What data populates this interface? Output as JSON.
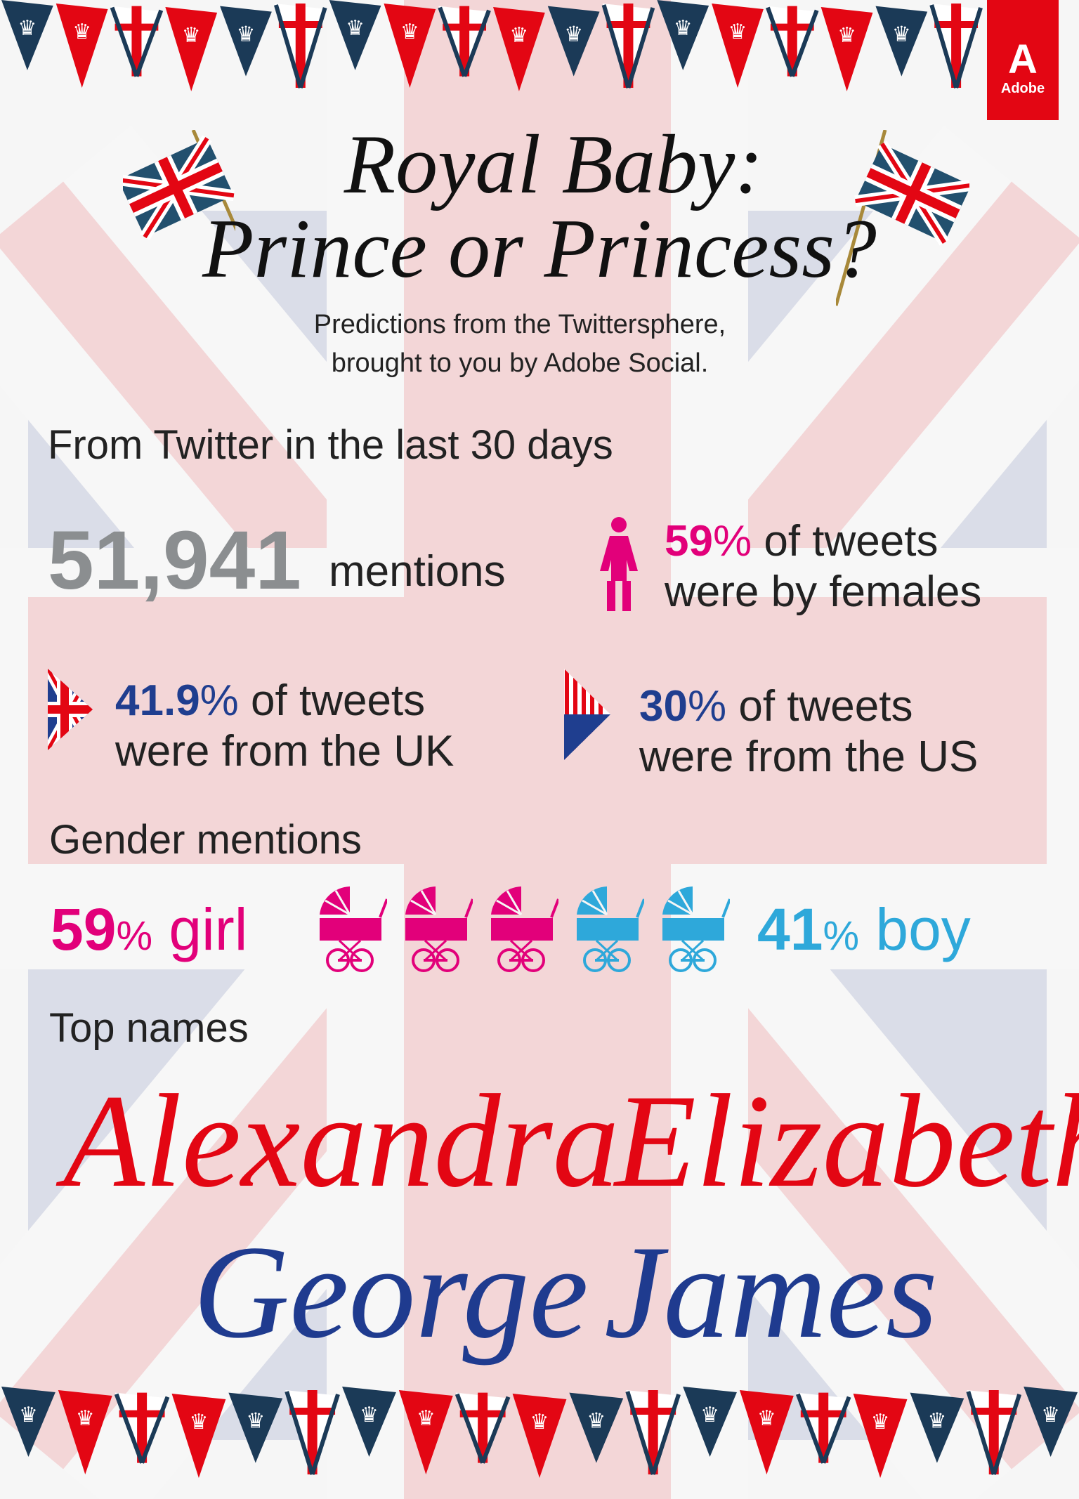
{
  "brand": {
    "logo_text": "Adobe",
    "color": "#e30613"
  },
  "header": {
    "title_line1": "Royal Baby:",
    "title_line2": "Prince or Princess?",
    "subtitle_line1": "Predictions from the Twittersphere,",
    "subtitle_line2": "brought to you by Adobe Social."
  },
  "twitter": {
    "heading": "From Twitter in the last 30 days",
    "mentions_value": "51,941",
    "mentions_label": "mentions",
    "female": {
      "value": "59",
      "pct": "%",
      "line1": " of tweets",
      "line2": "were by females",
      "icon": "female-icon"
    },
    "uk": {
      "value": "41.9",
      "pct": "%",
      "line1": " of tweets",
      "line2": "were from the UK",
      "icon": "uk-flag-icon"
    },
    "us": {
      "value": "30",
      "pct": "%",
      "line1": " of tweets",
      "line2": "were from the US",
      "icon": "us-flag-icon"
    }
  },
  "gender": {
    "heading": "Gender mentions",
    "girl_value": "59",
    "girl_pct": "%",
    "girl_label": " girl",
    "boy_value": "41",
    "boy_pct": "%",
    "boy_label": " boy",
    "prams": [
      "girl",
      "girl",
      "girl",
      "boy",
      "boy"
    ],
    "girl_color": "#e2007a",
    "boy_color": "#2ea8da"
  },
  "names": {
    "heading": "Top names",
    "girls": [
      "Alexandra",
      "Elizabeth"
    ],
    "boys": [
      "George",
      "James"
    ],
    "girl_color": "#e30613",
    "boy_color": "#1f3b8f"
  },
  "colors": {
    "navy": "#1b3a57",
    "red": "#e30613",
    "gray": "#8b8e90",
    "uk_blue": "#1f3e8f"
  }
}
